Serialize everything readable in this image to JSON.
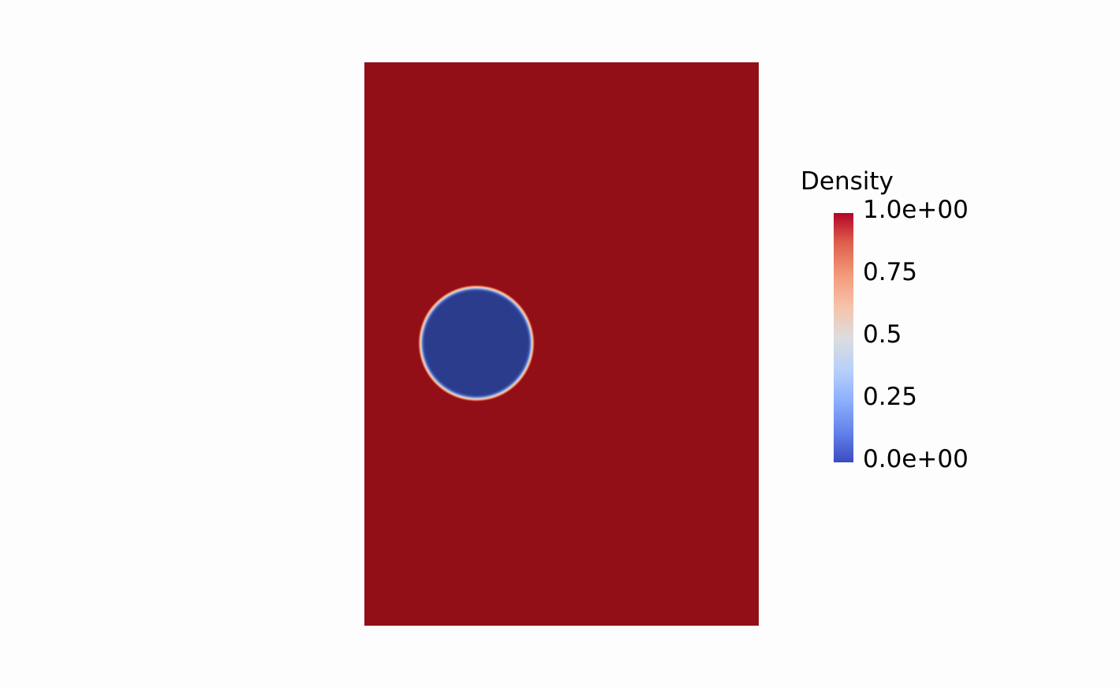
{
  "legend": {
    "title": "Density",
    "ticks": [
      "1.0e+00",
      "0.75",
      "0.5",
      "0.25",
      "0.0e+00"
    ],
    "colormap": [
      "#3b4cc0",
      "#dcdddd",
      "#b40426"
    ]
  },
  "field": {
    "background_value": 1.0,
    "bubble_value": 0.0,
    "background_color": "#920f18",
    "bubble_color": "#2c3c8c"
  }
}
